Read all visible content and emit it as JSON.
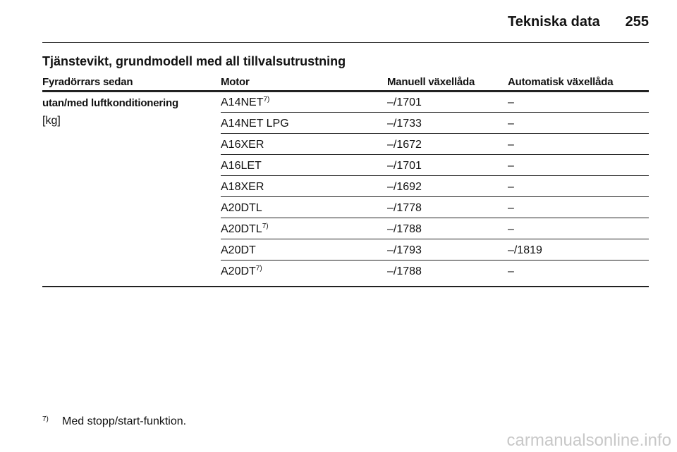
{
  "header": {
    "section": "Tekniska data",
    "page": "255"
  },
  "table": {
    "title": "Tjänstevikt, grundmodell med all tillvalsutrustning",
    "columns": [
      "Fyradörrars sedan",
      "Motor",
      "Manuell växellåda",
      "Automatisk växellåda"
    ],
    "group": {
      "label": "utan/med luftkonditionering",
      "unit": "[kg]"
    },
    "rows": [
      {
        "motor": "A14NET",
        "note": "7)",
        "manual": "–/1701",
        "auto": "–"
      },
      {
        "motor": "A14NET LPG",
        "manual": "–/1733",
        "auto": "–"
      },
      {
        "motor": "A16XER",
        "manual": "–/1672",
        "auto": "–"
      },
      {
        "motor": "A16LET",
        "manual": "–/1701",
        "auto": "–"
      },
      {
        "motor": "A18XER",
        "manual": "–/1692",
        "auto": "–"
      },
      {
        "motor": "A20DTL",
        "manual": "–/1778",
        "auto": "–"
      },
      {
        "motor": "A20DTL",
        "note": "7)",
        "manual": "–/1788",
        "auto": "–"
      },
      {
        "motor": "A20DT",
        "manual": "–/1793",
        "auto": "–/1819"
      },
      {
        "motor": "A20DT",
        "note": "7)",
        "manual": "–/1788",
        "auto": "–"
      }
    ]
  },
  "footnote": {
    "mark": "7)",
    "text": "Med stopp/start-funktion."
  },
  "watermark": "carmanualsonline.info"
}
